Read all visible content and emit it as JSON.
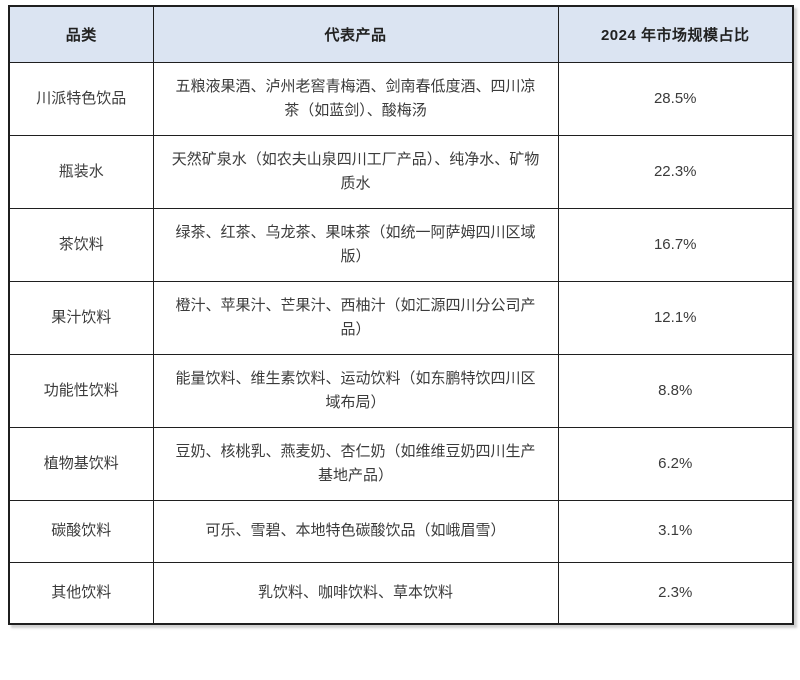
{
  "colors": {
    "header_bg": "#dbe4f2",
    "border": "#1f1f1f",
    "body_text": "#3b3b3b",
    "header_text": "#212121"
  },
  "table": {
    "columns": [
      "品类",
      "代表产品",
      "2024 年市场规模占比"
    ],
    "rows": [
      {
        "category": "川派特色饮品",
        "products": "五粮液果酒、泸州老窖青梅酒、剑南春低度酒、四川凉茶（如蓝剑）、酸梅汤",
        "share": "28.5%"
      },
      {
        "category": "瓶装水",
        "products": "天然矿泉水（如农夫山泉四川工厂产品）、纯净水、矿物质水",
        "share": "22.3%"
      },
      {
        "category": "茶饮料",
        "products": "绿茶、红茶、乌龙茶、果味茶（如统一阿萨姆四川区域版）",
        "share": "16.7%"
      },
      {
        "category": "果汁饮料",
        "products": "橙汁、苹果汁、芒果汁、西柚汁（如汇源四川分公司产品）",
        "share": "12.1%"
      },
      {
        "category": "功能性饮料",
        "products": "能量饮料、维生素饮料、运动饮料（如东鹏特饮四川区域布局）",
        "share": "8.8%"
      },
      {
        "category": "植物基饮料",
        "products": "豆奶、核桃乳、燕麦奶、杏仁奶（如维维豆奶四川生产基地产品）",
        "share": "6.2%"
      },
      {
        "category": "碳酸饮料",
        "products": "可乐、雪碧、本地特色碳酸饮品（如峨眉雪）",
        "share": "3.1%"
      },
      {
        "category": "其他饮料",
        "products": "乳饮料、咖啡饮料、草本饮料",
        "share": "2.3%"
      }
    ]
  }
}
